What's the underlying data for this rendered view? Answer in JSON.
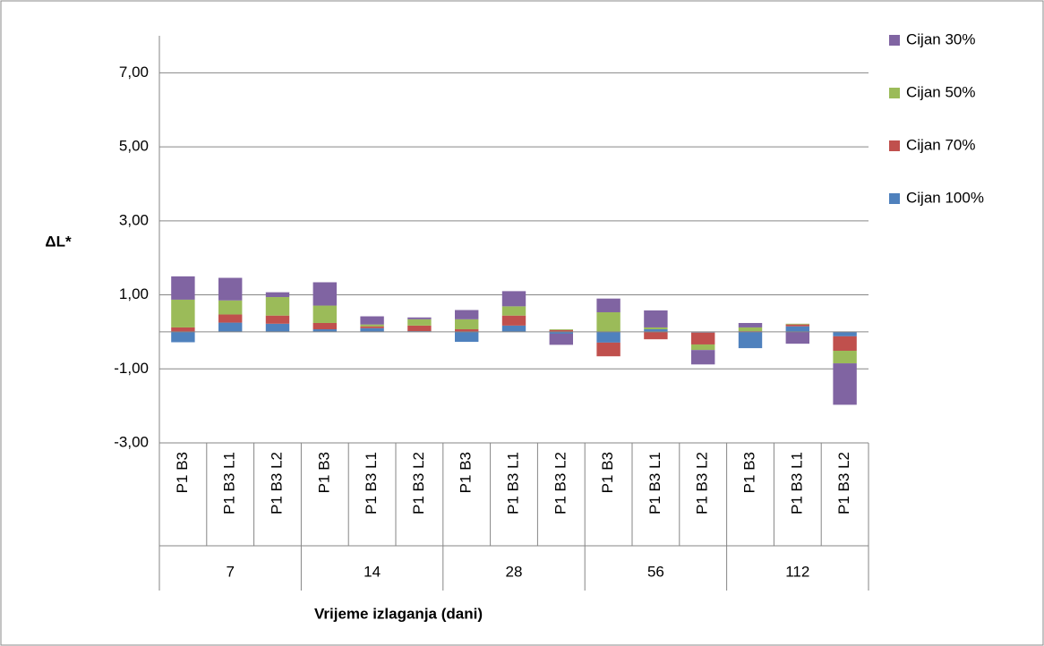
{
  "chart_data": {
    "type": "stacked_bar",
    "x_label": "Vrijeme izlaganja (dani)",
    "y_label": "ΔL*",
    "categories": [
      "P1 B3",
      "P1 B3 L1",
      "P1 B3 L2",
      "P1 B3",
      "P1 B3 L1",
      "P1 B3 L2",
      "P1 B3",
      "P1 B3 L1",
      "P1 B3 L2",
      "P1 B3",
      "P1 B3 L1",
      "P1 B3 L2",
      "P1 B3",
      "P1 B3 L1",
      "P1 B3 L2"
    ],
    "groups": [
      "7",
      "14",
      "28",
      "56",
      "112"
    ],
    "series": [
      {
        "name": "Cijan 100%",
        "color": "#4f81bd",
        "values": [
          -0.28,
          0.25,
          0.22,
          0.07,
          0.1,
          0.02,
          -0.27,
          0.17,
          -0.05,
          -0.29,
          0.07,
          -0.02,
          -0.44,
          0.15,
          -0.12
        ]
      },
      {
        "name": "Cijan 70%",
        "color": "#c0504d",
        "values": [
          0.12,
          0.22,
          0.22,
          0.17,
          0.05,
          0.15,
          0.07,
          0.27,
          0.05,
          -0.37,
          -0.2,
          -0.32,
          0.02,
          0.05,
          -0.39
        ]
      },
      {
        "name": "Cijan 50%",
        "color": "#9bbb59",
        "values": [
          0.75,
          0.38,
          0.5,
          0.47,
          0.05,
          0.17,
          0.27,
          0.25,
          0.02,
          0.53,
          0.05,
          -0.15,
          0.1,
          0.02,
          -0.34
        ]
      },
      {
        "name": "Cijan 30%",
        "color": "#8064a2",
        "values": [
          0.63,
          0.61,
          0.13,
          0.63,
          0.22,
          0.05,
          0.25,
          0.41,
          -0.3,
          0.37,
          0.46,
          -0.39,
          0.12,
          -0.32,
          -1.12
        ]
      }
    ],
    "ylim": [
      -3,
      8
    ],
    "yticks": [
      {
        "value": -3,
        "label": "-3,00"
      },
      {
        "value": -1,
        "label": "-1,00"
      },
      {
        "value": 1,
        "label": "1,00"
      },
      {
        "value": 3,
        "label": "3,00"
      },
      {
        "value": 5,
        "label": "5,00"
      },
      {
        "value": 7,
        "label": "7,00"
      }
    ],
    "grid": true,
    "legend": "right"
  }
}
